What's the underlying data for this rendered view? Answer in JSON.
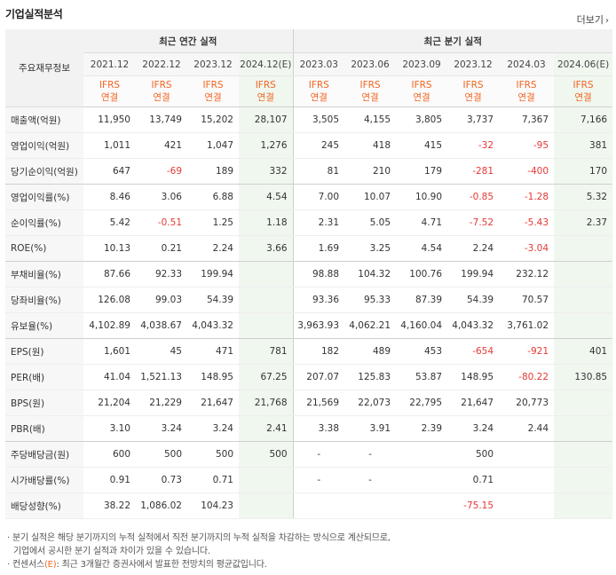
{
  "title": "기업실적분석",
  "more_label": "더보기",
  "row_header_label": "주요재무정보",
  "group_annual_label": "최근 연간 실적",
  "group_quarter_label": "최근 분기 실적",
  "periods": [
    "2021.12",
    "2022.12",
    "2023.12",
    "2024.12(E)",
    "2023.03",
    "2023.06",
    "2023.09",
    "2023.12",
    "2024.03",
    "2024.06(E)"
  ],
  "ifrs_top": "IFRS",
  "ifrs_bottom": "연결",
  "rows": [
    {
      "label": "매출액(억원)",
      "values": [
        "11,950",
        "13,749",
        "15,202",
        "28,107",
        "3,505",
        "4,155",
        "3,805",
        "3,737",
        "7,367",
        "7,166"
      ]
    },
    {
      "label": "영업이익(억원)",
      "values": [
        "1,011",
        "421",
        "1,047",
        "1,276",
        "245",
        "418",
        "415",
        "-32",
        "-95",
        "381"
      ]
    },
    {
      "label": "당기순이익(억원)",
      "values": [
        "647",
        "-69",
        "189",
        "332",
        "81",
        "210",
        "179",
        "-281",
        "-400",
        "170"
      ]
    },
    {
      "label": "영업이익률(%)",
      "values": [
        "8.46",
        "3.06",
        "6.88",
        "4.54",
        "7.00",
        "10.07",
        "10.90",
        "-0.85",
        "-1.28",
        "5.32"
      ]
    },
    {
      "label": "순이익률(%)",
      "values": [
        "5.42",
        "-0.51",
        "1.25",
        "1.18",
        "2.31",
        "5.05",
        "4.71",
        "-7.52",
        "-5.43",
        "2.37"
      ]
    },
    {
      "label": "ROE(%)",
      "values": [
        "10.13",
        "0.21",
        "2.24",
        "3.66",
        "1.69",
        "3.25",
        "4.54",
        "2.24",
        "-3.04",
        ""
      ]
    },
    {
      "label": "부채비율(%)",
      "values": [
        "87.66",
        "92.33",
        "199.94",
        "",
        "98.88",
        "104.32",
        "100.76",
        "199.94",
        "232.12",
        ""
      ]
    },
    {
      "label": "당좌비율(%)",
      "values": [
        "126.08",
        "99.03",
        "54.39",
        "",
        "93.36",
        "95.33",
        "87.39",
        "54.39",
        "70.57",
        ""
      ]
    },
    {
      "label": "유보율(%)",
      "values": [
        "4,102.89",
        "4,038.67",
        "4,043.32",
        "",
        "3,963.93",
        "4,062.21",
        "4,160.04",
        "4,043.32",
        "3,761.02",
        ""
      ]
    },
    {
      "label": "EPS(원)",
      "values": [
        "1,601",
        "45",
        "471",
        "781",
        "182",
        "489",
        "453",
        "-654",
        "-921",
        "401"
      ]
    },
    {
      "label": "PER(배)",
      "values": [
        "41.04",
        "1,521.13",
        "148.95",
        "67.25",
        "207.07",
        "125.83",
        "53.87",
        "148.95",
        "-80.22",
        "130.85"
      ]
    },
    {
      "label": "BPS(원)",
      "values": [
        "21,204",
        "21,229",
        "21,647",
        "21,768",
        "21,569",
        "22,073",
        "22,795",
        "21,647",
        "20,773",
        ""
      ]
    },
    {
      "label": "PBR(배)",
      "values": [
        "3.10",
        "3.24",
        "3.24",
        "2.41",
        "3.38",
        "3.91",
        "2.39",
        "3.24",
        "2.44",
        ""
      ]
    },
    {
      "label": "주당배당금(원)",
      "values": [
        "600",
        "500",
        "500",
        "500",
        "-",
        "-",
        "",
        "500",
        "",
        ""
      ]
    },
    {
      "label": "시가배당률(%)",
      "values": [
        "0.91",
        "0.73",
        "0.71",
        "",
        "-",
        "-",
        "",
        "0.71",
        "",
        ""
      ]
    },
    {
      "label": "배당성향(%)",
      "values": [
        "38.22",
        "1,086.02",
        "104.23",
        "",
        "",
        "",
        "",
        "-75.15",
        "",
        ""
      ]
    }
  ],
  "notes": {
    "line1": "분기 실적은 해당 분기까지의 누적 실적에서 직전 분기까지의 누적 실적을 차감하는 방식으로 계산되므로,",
    "line2": "기업에서 공시한 분기 실적과 차이가 있을 수 있습니다.",
    "line3_prefix": "컨센서스",
    "line3_mark": "(E)",
    "line3_suffix": ": 최근 3개월간 증권사에서 발표한 전망치의 평균값입니다."
  },
  "colors": {
    "accent": "#f26522",
    "negative": "#e53935",
    "estimate_bg": "#f0f7ef",
    "header_bg": "#f2f2f2"
  }
}
